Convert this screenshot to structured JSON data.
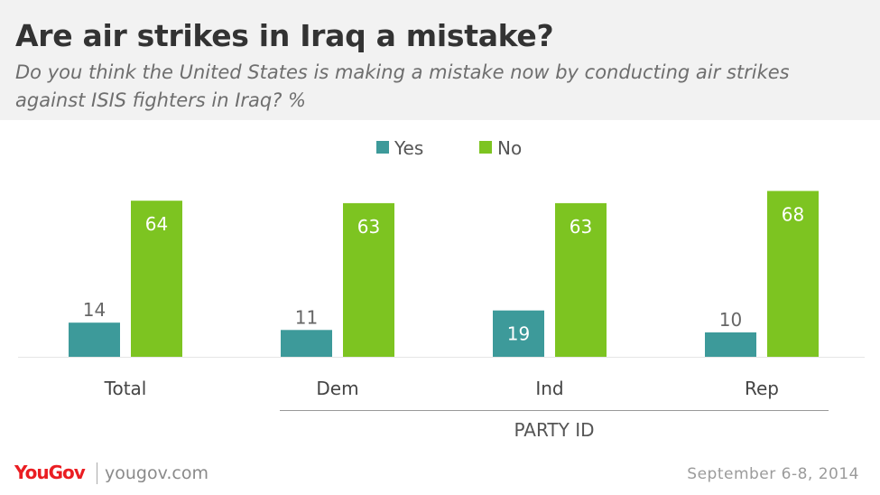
{
  "header": {
    "title": "Are air strikes in Iraq a mistake?",
    "subtitle": "Do you think the United States is making a mistake now by conducting air strikes against ISIS fighters in Iraq? %"
  },
  "footer": {
    "logo": "YouGov",
    "url": "yougov.com",
    "date": "September 6-8, 2014"
  },
  "colors": {
    "yes": "#3d9a9a",
    "no": "#7dc421"
  },
  "chart_data": {
    "type": "bar",
    "categories": [
      "Total",
      "Dem",
      "Ind",
      "Rep"
    ],
    "group_label": "PARTY ID",
    "series": [
      {
        "name": "Yes",
        "values": [
          14,
          11,
          19,
          10
        ]
      },
      {
        "name": "No",
        "values": [
          64,
          63,
          63,
          68
        ]
      }
    ],
    "xlabel": "",
    "ylabel": "",
    "ylim": [
      0,
      70
    ],
    "grid": false,
    "legend": "top-center"
  }
}
